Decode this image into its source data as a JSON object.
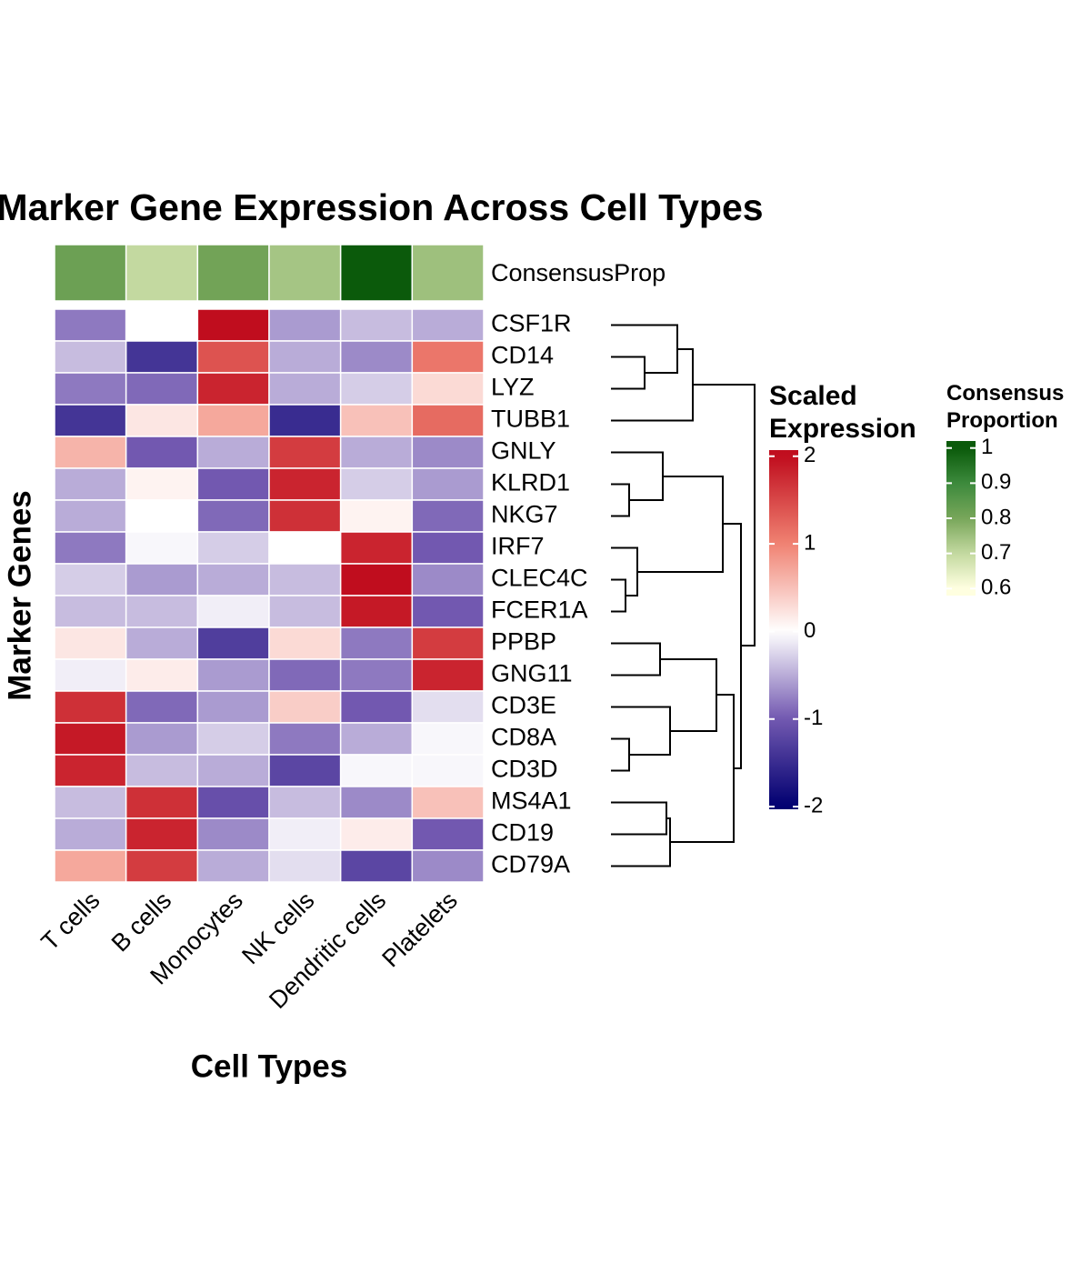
{
  "chart_data": {
    "type": "heatmap",
    "title": "Marker Gene Expression Across Cell Types",
    "xlabel": "Cell Types",
    "ylabel": "Marker Genes",
    "categories": [
      "T cells",
      "B cells",
      "Monocytes",
      "NK cells",
      "Dendritic cells",
      "Platelets"
    ],
    "rows": [
      "CSF1R",
      "CD14",
      "LYZ",
      "TUBB1",
      "GNLY",
      "KLRD1",
      "NKG7",
      "IRF7",
      "CLEC4C",
      "FCER1A",
      "PPBP",
      "GNG11",
      "CD3E",
      "CD8A",
      "CD3D",
      "MS4A1",
      "CD19",
      "CD79A"
    ],
    "values": [
      [
        -0.8,
        0.0,
        2.0,
        -0.6,
        -0.4,
        -0.5
      ],
      [
        -0.4,
        -1.4,
        1.4,
        -0.5,
        -0.7,
        1.1
      ],
      [
        -0.8,
        -0.9,
        1.8,
        -0.5,
        -0.3,
        0.3
      ],
      [
        -1.4,
        0.2,
        0.7,
        -1.5,
        0.5,
        1.2
      ],
      [
        0.6,
        -1.0,
        -0.5,
        1.6,
        -0.5,
        -0.7
      ],
      [
        -0.5,
        0.1,
        -1.0,
        1.8,
        -0.3,
        -0.6
      ],
      [
        -0.5,
        0.0,
        -0.9,
        1.7,
        0.1,
        -0.9
      ],
      [
        -0.8,
        -0.05,
        -0.3,
        0.0,
        1.8,
        -1.0
      ],
      [
        -0.3,
        -0.6,
        -0.5,
        -0.4,
        2.0,
        -0.7
      ],
      [
        -0.4,
        -0.4,
        -0.1,
        -0.4,
        1.9,
        -1.0
      ],
      [
        0.2,
        -0.5,
        -1.3,
        0.3,
        -0.8,
        1.6
      ],
      [
        -0.1,
        0.15,
        -0.6,
        -0.9,
        -0.8,
        1.8
      ],
      [
        1.7,
        -0.9,
        -0.6,
        0.4,
        -1.0,
        -0.2
      ],
      [
        1.9,
        -0.6,
        -0.3,
        -0.8,
        -0.5,
        -0.05
      ],
      [
        1.8,
        -0.4,
        -0.5,
        -1.2,
        -0.05,
        -0.05
      ],
      [
        -0.4,
        1.7,
        -1.1,
        -0.4,
        -0.7,
        0.5
      ],
      [
        -0.5,
        1.8,
        -0.7,
        -0.1,
        0.15,
        -1.0
      ],
      [
        0.7,
        1.6,
        -0.5,
        -0.2,
        -1.2,
        -0.7
      ]
    ],
    "color_scale": {
      "breaks": [
        -2,
        -1,
        0,
        1,
        2
      ],
      "colors": [
        "#000070",
        "#7258b0",
        "#ffffff",
        "#f08272",
        "#c00d1e"
      ]
    },
    "legend": {
      "title": [
        "Scaled",
        "Expression"
      ],
      "lim": [
        -2.03,
        2.07
      ],
      "ticks": [
        2,
        1,
        0,
        -1,
        -2
      ]
    },
    "annotation": {
      "name": "ConsensusProp",
      "values": [
        0.82,
        0.7,
        0.81,
        0.74,
        1.0,
        0.75
      ],
      "color_scale": {
        "breaks": [
          0.6,
          0.7,
          0.8,
          0.9,
          1.0
        ],
        "colors": [
          "#ffffe0",
          "#c3d9a0",
          "#78a65a",
          "#3c8a3c",
          "#0b5a0b"
        ]
      },
      "legend": {
        "title": [
          "Consensus",
          "Proportion"
        ],
        "lim": [
          0.58,
          1.02
        ],
        "ticks": [
          1,
          0.9,
          0.8,
          0.7,
          0.6
        ]
      }
    }
  }
}
